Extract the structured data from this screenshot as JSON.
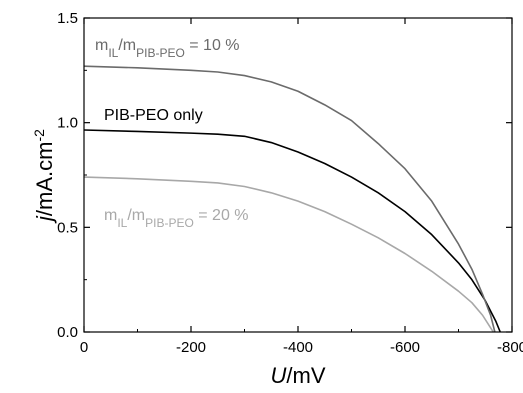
{
  "chart_data": {
    "type": "line",
    "x_axis": {
      "label_italic": "U",
      "label_rest": "/mV",
      "range": [
        0,
        -800
      ],
      "ticks": [
        0,
        -200,
        -400,
        -600,
        -800
      ],
      "tick_labels": [
        "0",
        "-200",
        "-400",
        "-600",
        "-800"
      ]
    },
    "y_axis": {
      "label_italic": "j",
      "label_rest": "/mA.cm",
      "label_superscript": "-2",
      "range": [
        0.0,
        1.5
      ],
      "ticks": [
        0.0,
        0.5,
        1.0,
        1.5
      ],
      "tick_labels": [
        "0.0",
        "0.5",
        "1.0",
        "1.5"
      ]
    },
    "grid": false,
    "series": [
      {
        "name": "PIB-PEO only",
        "color": "#000000",
        "points": [
          [
            0,
            0.965
          ],
          [
            -100,
            0.958
          ],
          [
            -200,
            0.95
          ],
          [
            -250,
            0.945
          ],
          [
            -300,
            0.935
          ],
          [
            -350,
            0.905
          ],
          [
            -400,
            0.86
          ],
          [
            -450,
            0.805
          ],
          [
            -500,
            0.74
          ],
          [
            -550,
            0.665
          ],
          [
            -600,
            0.575
          ],
          [
            -650,
            0.465
          ],
          [
            -700,
            0.33
          ],
          [
            -725,
            0.25
          ],
          [
            -750,
            0.15
          ],
          [
            -770,
            0.05
          ],
          [
            -778,
            0.0
          ]
        ]
      },
      {
        "name": "m_IL/m_PIB-PEO = 10 %",
        "color": "#6b6b6b",
        "points": [
          [
            0,
            1.27
          ],
          [
            -100,
            1.262
          ],
          [
            -200,
            1.25
          ],
          [
            -250,
            1.242
          ],
          [
            -300,
            1.225
          ],
          [
            -350,
            1.195
          ],
          [
            -400,
            1.15
          ],
          [
            -450,
            1.085
          ],
          [
            -500,
            1.01
          ],
          [
            -550,
            0.9
          ],
          [
            -600,
            0.78
          ],
          [
            -650,
            0.625
          ],
          [
            -700,
            0.42
          ],
          [
            -725,
            0.3
          ],
          [
            -745,
            0.18
          ],
          [
            -760,
            0.08
          ],
          [
            -768,
            0.0
          ]
        ]
      },
      {
        "name": "m_IL/m_PIB-PEO = 20 %",
        "color": "#a8a8a8",
        "points": [
          [
            0,
            0.74
          ],
          [
            -100,
            0.732
          ],
          [
            -200,
            0.72
          ],
          [
            -250,
            0.712
          ],
          [
            -300,
            0.695
          ],
          [
            -350,
            0.665
          ],
          [
            -400,
            0.625
          ],
          [
            -450,
            0.575
          ],
          [
            -500,
            0.515
          ],
          [
            -550,
            0.45
          ],
          [
            -600,
            0.375
          ],
          [
            -650,
            0.29
          ],
          [
            -700,
            0.195
          ],
          [
            -725,
            0.14
          ],
          [
            -745,
            0.08
          ],
          [
            -760,
            0.02
          ],
          [
            -765,
            0.0
          ]
        ]
      }
    ],
    "annotations": {
      "pib_only": "PIB-PEO only",
      "il10_m": "m",
      "il10_sub1": "IL",
      "il10_slash": "/m",
      "il10_sub2": "PIB-PEO",
      "il10_value": " = 10 %",
      "il20_m": "m",
      "il20_sub1": "IL",
      "il20_slash": "/m",
      "il20_sub2": "PIB-PEO",
      "il20_value": " = 20 %"
    }
  }
}
